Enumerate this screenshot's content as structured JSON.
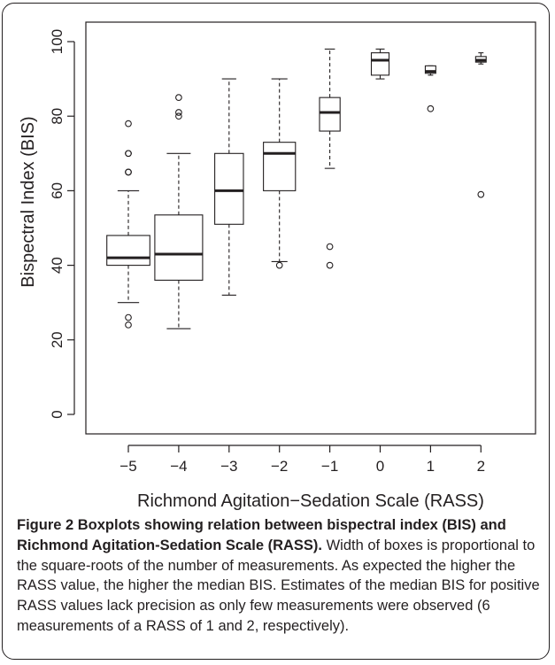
{
  "chart_data": {
    "type": "boxplot",
    "xlabel": "Richmond Agitation−Sedation Scale (RASS)",
    "ylabel": "Bispectral Index (BIS)",
    "ylim": [
      0,
      100
    ],
    "y_ticks": [
      0,
      20,
      40,
      60,
      80,
      100
    ],
    "categories": [
      "−5",
      "−4",
      "−3",
      "−2",
      "−1",
      "0",
      "1",
      "2"
    ],
    "boxes": [
      {
        "x": "−5",
        "whisker_low": 30,
        "q1": 40,
        "median": 42,
        "q3": 48,
        "whisker_high": 60,
        "outliers": [
          78,
          70,
          70,
          65,
          65,
          26,
          24
        ],
        "relative_width": 0.9
      },
      {
        "x": "−4",
        "whisker_low": 23,
        "q1": 36,
        "median": 43,
        "q3": 53.5,
        "whisker_high": 70,
        "outliers": [
          85,
          81,
          80
        ],
        "relative_width": 1.0
      },
      {
        "x": "−3",
        "whisker_low": 32,
        "q1": 51,
        "median": 60,
        "q3": 70,
        "whisker_high": 90,
        "outliers": [],
        "relative_width": 0.6
      },
      {
        "x": "−2",
        "whisker_low": 41,
        "q1": 60,
        "median": 70,
        "q3": 73,
        "whisker_high": 90,
        "outliers": [
          40
        ],
        "relative_width": 0.67
      },
      {
        "x": "−1",
        "whisker_low": 66,
        "q1": 76,
        "median": 81,
        "q3": 85,
        "whisker_high": 98,
        "outliers": [
          45,
          40
        ],
        "relative_width": 0.43
      },
      {
        "x": "0",
        "whisker_low": 90,
        "q1": 91,
        "median": 95,
        "q3": 97,
        "whisker_high": 98,
        "outliers": [],
        "relative_width": 0.37
      },
      {
        "x": "1",
        "whisker_low": 91,
        "q1": 91.5,
        "median": 92,
        "q3": 93.5,
        "whisker_high": 93.5,
        "outliers": [
          82
        ],
        "relative_width": 0.22
      },
      {
        "x": "2",
        "whisker_low": 94,
        "q1": 94.5,
        "median": 95,
        "q3": 96,
        "whisker_high": 97,
        "outliers": [
          59
        ],
        "relative_width": 0.22
      }
    ]
  },
  "caption": {
    "title": "Figure 2 Boxplots showing relation between bispectral index (BIS) and Richmond Agitation-Sedation Scale (RASS).",
    "body": " Width of boxes is proportional to the square-roots of the number of measurements. As expected the higher the RASS value, the higher the median BIS. Estimates of the median BIS for positive RASS values lack precision as only few measurements were observed (6 measurements of a RASS of 1 and 2, respectively)."
  }
}
